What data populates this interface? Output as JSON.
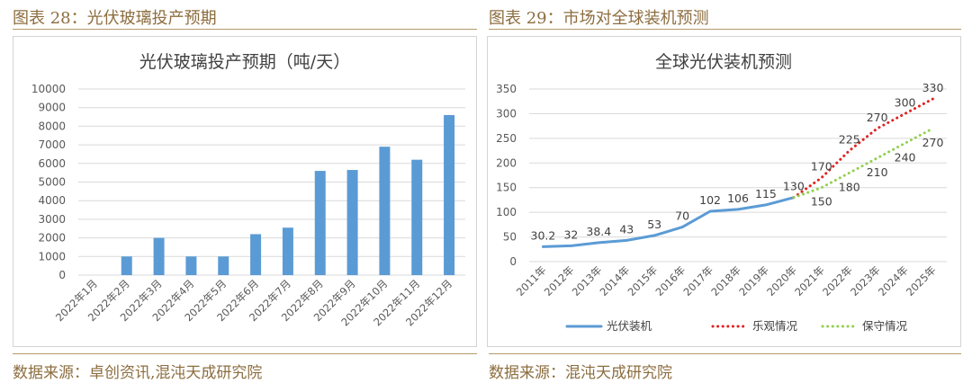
{
  "figures": [
    {
      "caption": "图表 28：光伏玻璃投产预期",
      "source": "数据来源：卓创资讯,混沌天成研究院"
    },
    {
      "caption": "图表 29：市场对全球装机预测",
      "source": "数据来源：混沌天成研究院"
    }
  ],
  "colors": {
    "caption": "#8c6d3f",
    "bar": "#5b9bd5",
    "line": "#5b9bd5",
    "optimistic": "#e02020",
    "conservative": "#92d050"
  },
  "chart_data": [
    {
      "type": "bar",
      "title": "光伏玻璃投产预期（吨/天）",
      "categories": [
        "2022年1月",
        "2022年2月",
        "2022年3月",
        "2022年4月",
        "2022年5月",
        "2022年6月",
        "2022年7月",
        "2022年8月",
        "2022年9月",
        "2022年10月",
        "2022年11月",
        "2022年12月"
      ],
      "values": [
        0,
        1000,
        2000,
        1000,
        1000,
        2200,
        2550,
        5600,
        5650,
        6900,
        6200,
        8600
      ],
      "ylim": [
        0,
        10000
      ],
      "yticks": [
        0,
        1000,
        2000,
        3000,
        4000,
        5000,
        6000,
        7000,
        8000,
        9000,
        10000
      ],
      "grid": true
    },
    {
      "type": "line",
      "title": "全球光伏装机预测",
      "categories": [
        "2011年",
        "2012年",
        "2013年",
        "2014年",
        "2015年",
        "2016年",
        "2017年",
        "2018年",
        "2019年",
        "2020年",
        "2021年",
        "2022年",
        "2023年",
        "2024年",
        "2025年"
      ],
      "ylim": [
        0,
        350
      ],
      "yticks": [
        0,
        50,
        100,
        150,
        200,
        250,
        300,
        350
      ],
      "grid": true,
      "legend": "bottom",
      "series": [
        {
          "name": "光伏装机",
          "style": "solid",
          "values": [
            30.2,
            32,
            38.4,
            43,
            53,
            70,
            102,
            106,
            115,
            130,
            null,
            null,
            null,
            null,
            null
          ],
          "labels": [
            "30.2",
            "32",
            "38.4",
            "43",
            "53",
            "70",
            "102",
            "106",
            "115",
            "130",
            "",
            "",
            "",
            "",
            ""
          ]
        },
        {
          "name": "乐观情况",
          "style": "dotted",
          "values": [
            null,
            null,
            null,
            null,
            null,
            null,
            null,
            null,
            null,
            130,
            170,
            225,
            270,
            300,
            330
          ],
          "labels": [
            "",
            "",
            "",
            "",
            "",
            "",
            "",
            "",
            "",
            "",
            "170",
            "225",
            "270",
            "300",
            "330"
          ]
        },
        {
          "name": "保守情况",
          "style": "dotted",
          "values": [
            null,
            null,
            null,
            null,
            null,
            null,
            null,
            null,
            null,
            130,
            150,
            180,
            210,
            240,
            270
          ],
          "labels": [
            "",
            "",
            "",
            "",
            "",
            "",
            "",
            "",
            "",
            "",
            "150",
            "180",
            "210",
            "240",
            "270"
          ]
        }
      ]
    }
  ]
}
